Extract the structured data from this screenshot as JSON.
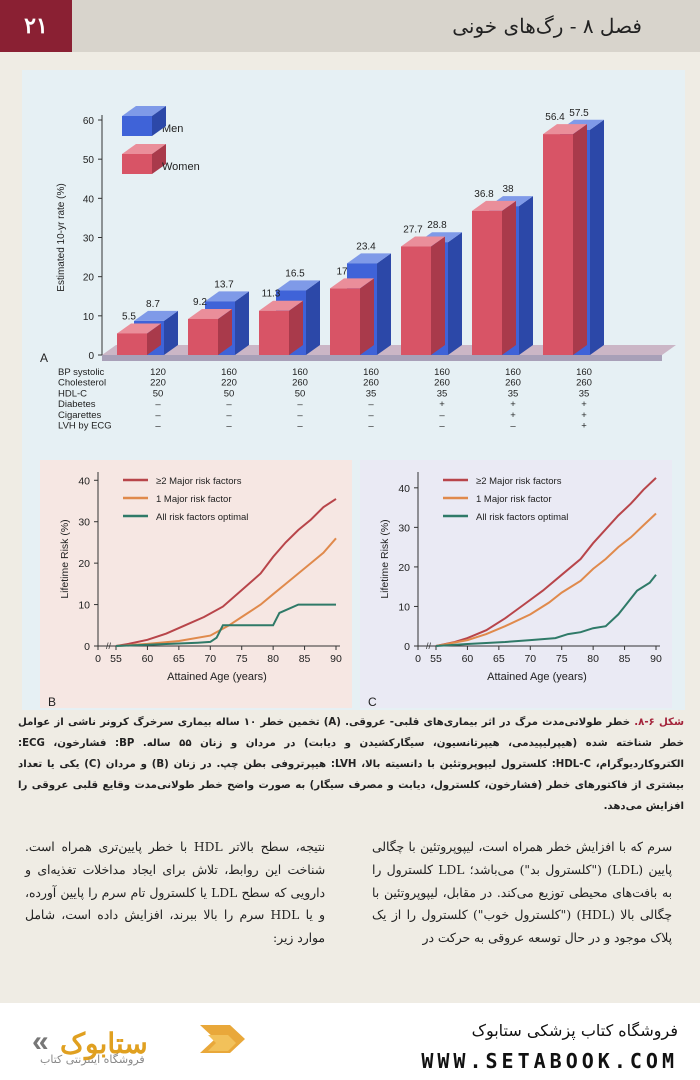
{
  "header": {
    "page_number": "۲۱",
    "chapter_title": "فصل ۸ - رگ‌های خونی"
  },
  "colors": {
    "men": "#3f63d8",
    "women": "#d85466",
    "major": "#b8454a",
    "one_major": "#e08a4c",
    "optimal": "#2f7a68",
    "accent": "#a4243b"
  },
  "chart_data": [
    {
      "type": "bar",
      "panel_label": "A",
      "ylabel": "Estimated 10-yr rate (%)",
      "ylim": [
        0,
        60
      ],
      "yticks": [
        0,
        10,
        20,
        30,
        40,
        50,
        60
      ],
      "legend": [
        "Men",
        "Women"
      ],
      "series": [
        {
          "name": "Women",
          "values": [
            5.5,
            9.2,
            11.3,
            17,
            27.7,
            36.8,
            56.4
          ]
        },
        {
          "name": "Men",
          "values": [
            8.7,
            13.7,
            16.5,
            23.4,
            28.8,
            38,
            57.5
          ]
        }
      ],
      "risk_table": {
        "row_labels": [
          "BP systolic",
          "Cholesterol",
          "HDL-C",
          "Diabetes",
          "Cigarettes",
          "LVH by ECG"
        ],
        "columns": [
          [
            "120",
            "220",
            "50",
            "–",
            "–",
            "–"
          ],
          [
            "160",
            "220",
            "50",
            "–",
            "–",
            "–"
          ],
          [
            "160",
            "260",
            "50",
            "–",
            "–",
            "–"
          ],
          [
            "160",
            "260",
            "35",
            "–",
            "–",
            "–"
          ],
          [
            "160",
            "260",
            "35",
            "+",
            "–",
            "–"
          ],
          [
            "160",
            "260",
            "35",
            "+",
            "+",
            "–"
          ],
          [
            "160",
            "260",
            "35",
            "+",
            "+",
            "+"
          ]
        ]
      }
    },
    {
      "type": "line",
      "panel_label": "B",
      "xlabel": "Attained Age (years)",
      "ylabel": "Lifetime Risk (%)",
      "xticks": [
        "0",
        "55",
        "60",
        "65",
        "70",
        "75",
        "80",
        "85",
        "90"
      ],
      "yticks": [
        0,
        10,
        20,
        30,
        40
      ],
      "ylim": [
        0,
        42
      ],
      "series": [
        {
          "name": "≥2 Major risk factors",
          "x": [
            55,
            57,
            60,
            63,
            66,
            69,
            72,
            75,
            78,
            80,
            82,
            84,
            86,
            88,
            90
          ],
          "y": [
            0,
            0.5,
            1.5,
            3,
            5,
            7,
            9.5,
            13.5,
            17.5,
            21.5,
            25,
            28,
            30.5,
            33.5,
            35.5
          ]
        },
        {
          "name": "1 Major risk factor",
          "x": [
            55,
            60,
            65,
            70,
            73,
            75,
            78,
            80,
            82,
            84,
            86,
            88,
            90
          ],
          "y": [
            0,
            0.5,
            1.2,
            2.5,
            5,
            7,
            10,
            12.5,
            15,
            17.5,
            20,
            22.5,
            26
          ]
        },
        {
          "name": "All risk factors optimal",
          "x": [
            55,
            60,
            65,
            68,
            70,
            71,
            72,
            75,
            78,
            80,
            81,
            84,
            90
          ],
          "y": [
            0,
            0.3,
            0.6,
            0.8,
            1,
            2,
            5,
            5,
            5,
            5,
            8,
            10,
            10
          ]
        }
      ]
    },
    {
      "type": "line",
      "panel_label": "C",
      "xlabel": "Attained Age (years)",
      "ylabel": "Lifetime Risk (%)",
      "xticks": [
        "0",
        "55",
        "60",
        "65",
        "70",
        "75",
        "80",
        "85",
        "90"
      ],
      "yticks": [
        0,
        10,
        20,
        30,
        40
      ],
      "ylim": [
        0,
        44
      ],
      "series": [
        {
          "name": "≥2 Major risk factors",
          "x": [
            55,
            58,
            60,
            63,
            66,
            69,
            72,
            75,
            78,
            80,
            82,
            84,
            86,
            88,
            90
          ],
          "y": [
            0,
            1,
            2,
            4,
            7,
            10.5,
            14,
            18,
            22,
            26,
            29.5,
            33,
            36,
            39.5,
            42.5
          ]
        },
        {
          "name": "1 Major risk factor",
          "x": [
            55,
            60,
            63,
            66,
            70,
            73,
            75,
            78,
            80,
            82,
            84,
            86,
            88,
            90
          ],
          "y": [
            0,
            1.5,
            3,
            5,
            8,
            11,
            13.5,
            16.5,
            19.5,
            22,
            25,
            27.5,
            30.5,
            33.5
          ]
        },
        {
          "name": "All risk factors optimal",
          "x": [
            55,
            60,
            66,
            70,
            74,
            76,
            78,
            80,
            82,
            84,
            85,
            87,
            89,
            90
          ],
          "y": [
            0,
            0.5,
            1,
            1.5,
            2,
            3,
            3.5,
            4.5,
            5,
            8,
            10,
            14,
            16,
            18
          ]
        }
      ]
    }
  ],
  "caption": {
    "label": "شکل ۶-۸.",
    "text": "خطر طولانی‌مدت مرگ در اثر بیماری‌های قلبی- عروقی. (A) تخمین خطر ۱۰ ساله بیماری سرخرگ کرونر ناشی از عوامل خطر شناخته شده (هیپرلیپیدمی، هیپرتانسیون، سیگارکشیدن و دیابت) در مردان و زنان ۵۵ ساله. BP: فشارخون، ECG: الکتروکاردیوگرام، HDL-C: کلسترول لیپوپروتئین با دانسیته بالا، LVH: هیپرتروفی بطن چپ. در زنان (B) و مردان (C) یکی یا تعداد بیشتری از فاکتورهای خطر (فشارخون، کلسترول، دیابت و مصرف سیگار) به صورت واضح خطر طولانی‌مدت وقایع قلبی عروقی را افزایش می‌دهد."
  },
  "body": {
    "right_column": "سرم که با افزایش خطر همراه است، لیپوپروتئین با چگالی پایین (LDL) (\"کلسترول بد\") می‌باشد؛ LDL کلسترول را به بافت‌های محیطی توزیع می‌کند. در مقابل، لیپوپروتئین با چگالی بالا (HDL) (\"کلسترول خوب\") کلسترول را از یک پلاک موجود و در حال توسعه عروقی به حرکت در",
    "left_column": "نتیجه، سطح بالاتر HDL با خطر پایین‌تری همراه است. شناخت این روابط، تلاش برای ایجاد مداخلات تغذیه‌ای و دارویی که سطح LDL یا کلسترول تام سرم را پایین آورده، و یا HDL سرم را بالا ببرند، افزایش داده است، شامل موارد زیر:"
  },
  "footer": {
    "shop_name": "فروشگاه کتاب پزشکی ستابوک",
    "url": "WWW.SETABOOK.COM",
    "brand": "ستابوک",
    "tagline": "فروشگاه اینترنتی کتاب"
  }
}
